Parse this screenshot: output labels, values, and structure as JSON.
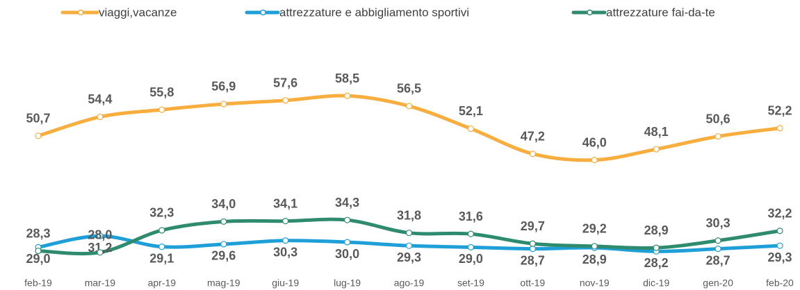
{
  "chart_data": {
    "type": "line",
    "categories": [
      "feb-19",
      "mar-19",
      "apr-19",
      "mag-19",
      "giu-19",
      "lug-19",
      "ago-19",
      "set-19",
      "ott-19",
      "nov-19",
      "dic-19",
      "gen-20",
      "feb-20"
    ],
    "ylim": [
      25,
      60
    ],
    "legend": "top",
    "series": [
      {
        "name": "viaggi,vacanze",
        "color": "#F7AE3E",
        "label_position": "above",
        "values": [
          50.7,
          54.4,
          55.8,
          56.9,
          57.6,
          58.5,
          56.5,
          52.1,
          47.2,
          46.0,
          48.1,
          50.6,
          52.2
        ],
        "value_labels": [
          "50,7",
          "54,4",
          "55,8",
          "56,9",
          "57,6",
          "58,5",
          "56,5",
          "52,1",
          "47,2",
          "46,0",
          "48,1",
          "50,6",
          "52,2"
        ]
      },
      {
        "name": "attrezzature e abbigliamento sportivi",
        "color": "#1E9FD8",
        "label_position": "below",
        "values": [
          29.0,
          31.2,
          29.1,
          29.6,
          30.3,
          30.0,
          29.3,
          29.0,
          28.7,
          28.9,
          28.2,
          28.7,
          29.3
        ],
        "value_labels": [
          "29,0",
          "31,2",
          "29,1",
          "29,6",
          "30,3",
          "30,0",
          "29,3",
          "29,0",
          "28,7",
          "28,9",
          "28,2",
          "28,7",
          "29,3"
        ]
      },
      {
        "name": "attrezzature fai-da-te",
        "color": "#2E8B6E",
        "label_position": "above",
        "values": [
          28.3,
          28.0,
          32.3,
          34.0,
          34.1,
          34.3,
          31.8,
          31.6,
          29.7,
          29.2,
          28.9,
          30.3,
          32.2
        ],
        "value_labels": [
          "28,3",
          "28,0",
          "32,3",
          "34,0",
          "34,1",
          "34,3",
          "31,8",
          "31,6",
          "29,7",
          "29,2",
          "28,9",
          "30,3",
          "32,2"
        ]
      }
    ]
  }
}
